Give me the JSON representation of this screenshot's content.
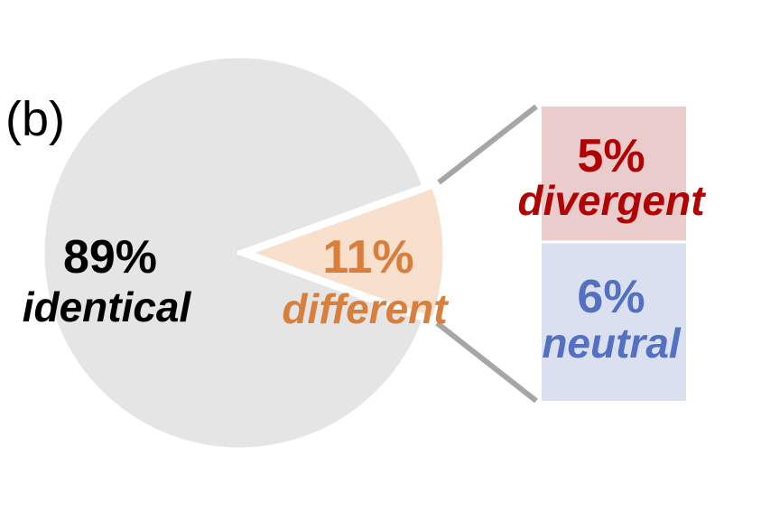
{
  "panel_label": "(b)",
  "colors": {
    "identical": "#e5e5e5",
    "different": "#f8e0cc",
    "different_text": "#d97f3e",
    "identical_text": "#000000",
    "divergent_fill": "#ebcccc",
    "divergent_text": "#b10303",
    "neutral_fill": "#dbe0f1",
    "neutral_text": "#5370c1",
    "connector": "#a6a6a6",
    "separator": "#ffffff"
  },
  "chart_data": {
    "type": "pie",
    "slices": [
      {
        "name": "identical",
        "value": 89,
        "pct_label": "89%",
        "label": "identical"
      },
      {
        "name": "different",
        "value": 11,
        "pct_label": "11%",
        "label": "different",
        "exploded": true
      }
    ],
    "breakdown": {
      "of": "different",
      "type": "stacked-bar",
      "segments": [
        {
          "name": "divergent",
          "value": 5,
          "pct_label": "5%",
          "label": "divergent"
        },
        {
          "name": "neutral",
          "value": 6,
          "pct_label": "6%",
          "label": "neutral"
        }
      ]
    }
  }
}
